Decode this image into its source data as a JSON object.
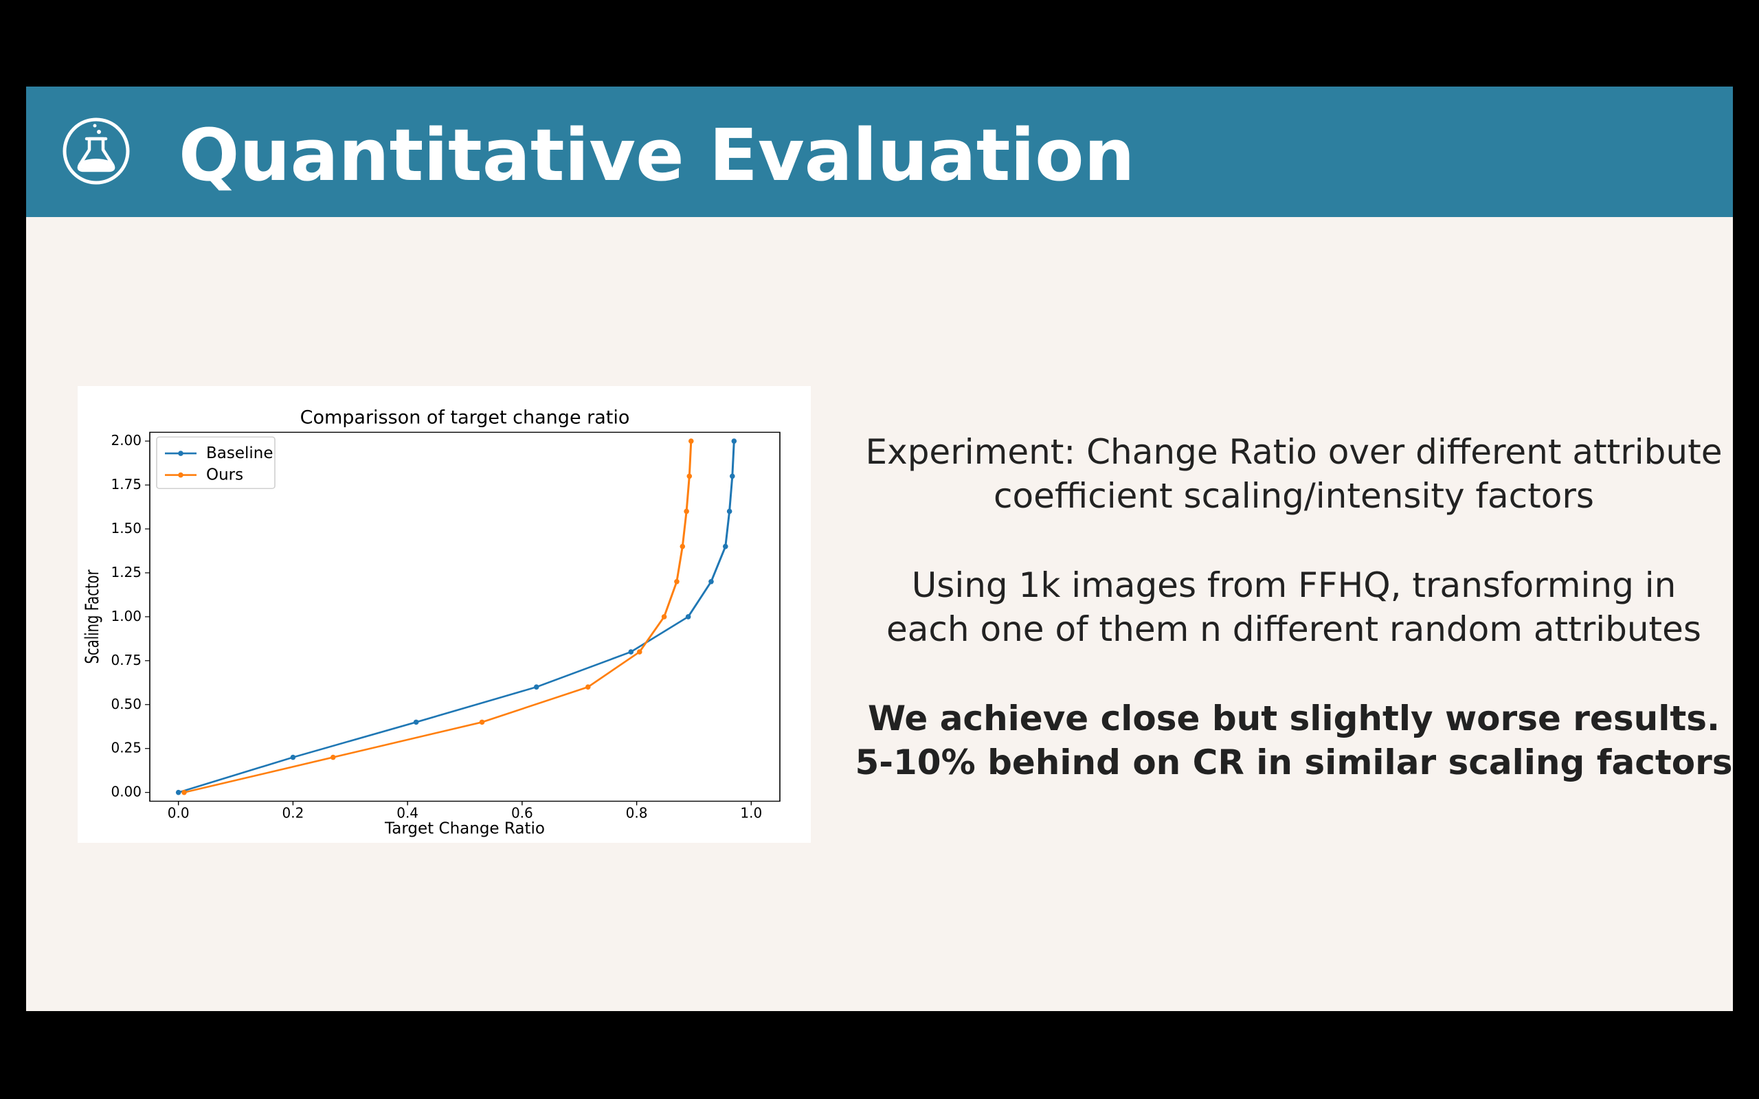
{
  "slide": {
    "title": "Quantitative Evaluation",
    "icon": "flask-icon",
    "colors": {
      "header_bg": "#2d7f9f",
      "slide_bg": "#f8f3ef",
      "text": "#222222"
    }
  },
  "text": {
    "experiment_line1": "Experiment: Change Ratio over different attribute",
    "experiment_line2": "coefficient scaling/intensity factors",
    "method_line1": "Using 1k images from FFHQ, transforming in",
    "method_line2": "each one of them n different random attributes",
    "result_line1": "We achieve close but slightly worse results.",
    "result_line2": "5-10% behind on CR in similar scaling factors"
  },
  "chart_data": {
    "type": "line",
    "title": "Comparisson of target change ratio",
    "xlabel": "Target Change Ratio",
    "ylabel": "Scaling Factor",
    "xlim": [
      -0.05,
      1.05
    ],
    "ylim": [
      -0.05,
      2.05
    ],
    "xticks": [
      "0.0",
      "0.2",
      "0.4",
      "0.6",
      "0.8",
      "1.0"
    ],
    "yticks": [
      "0.00",
      "0.25",
      "0.50",
      "0.75",
      "1.00",
      "1.25",
      "1.50",
      "1.75",
      "2.00"
    ],
    "legend_position": "top-left",
    "grid": false,
    "series": [
      {
        "name": "Baseline",
        "color": "#1f77b4",
        "points": [
          [
            0.0,
            0.0
          ],
          [
            0.2,
            0.2
          ],
          [
            0.415,
            0.4
          ],
          [
            0.625,
            0.6
          ],
          [
            0.79,
            0.8
          ],
          [
            0.89,
            1.0
          ],
          [
            0.93,
            1.2
          ],
          [
            0.955,
            1.4
          ],
          [
            0.962,
            1.6
          ],
          [
            0.967,
            1.8
          ],
          [
            0.97,
            2.0
          ]
        ]
      },
      {
        "name": "Ours",
        "color": "#ff7f0e",
        "points": [
          [
            0.01,
            0.0
          ],
          [
            0.27,
            0.2
          ],
          [
            0.53,
            0.4
          ],
          [
            0.715,
            0.6
          ],
          [
            0.805,
            0.8
          ],
          [
            0.848,
            1.0
          ],
          [
            0.87,
            1.2
          ],
          [
            0.88,
            1.4
          ],
          [
            0.887,
            1.6
          ],
          [
            0.892,
            1.8
          ],
          [
            0.895,
            2.0
          ]
        ]
      }
    ]
  }
}
